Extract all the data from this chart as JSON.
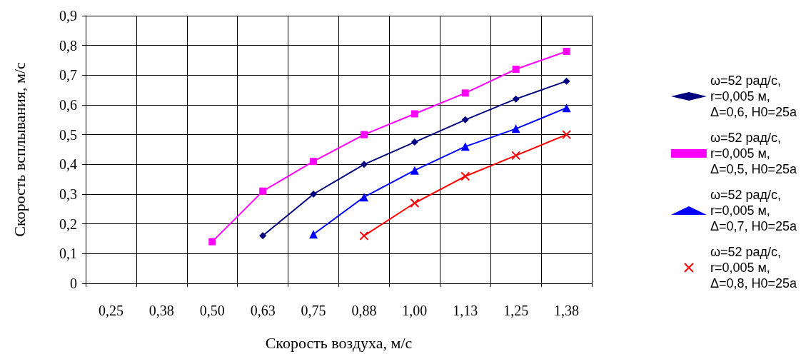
{
  "chart_data": {
    "type": "line",
    "xlabel": "Скорость воздуха, м/с",
    "ylabel": "Скорость всплывания, м/с",
    "categories": [
      "0,25",
      "0,38",
      "0,50",
      "0,63",
      "0,75",
      "0,88",
      "1,00",
      "1,13",
      "1,25",
      "1,38"
    ],
    "series": [
      {
        "name": "ω=52 рад/с, r=0,005 м, Δ=0,6, H0=25а",
        "color": "#000080",
        "marker": "diamond",
        "values": [
          null,
          null,
          null,
          0.16,
          0.3,
          0.4,
          0.475,
          0.55,
          0.62,
          0.68
        ]
      },
      {
        "name": "ω=52 рад/с, r=0,005 м, Δ=0,5, H0=25а",
        "color": "#ff00ff",
        "marker": "square",
        "values": [
          null,
          null,
          0.14,
          0.31,
          0.41,
          0.5,
          0.57,
          0.64,
          0.72,
          0.78
        ]
      },
      {
        "name": "ω=52 рад/с, r=0,005 м, Δ=0,7, H0=25а",
        "color": "#0000ff",
        "marker": "triangle",
        "values": [
          null,
          null,
          null,
          null,
          0.165,
          0.29,
          0.38,
          0.46,
          0.52,
          0.59
        ]
      },
      {
        "name": "ω=52 рад/с, r=0,005 м, Δ=0,8, H0=25а",
        "color": "#ff0000",
        "marker": "cross",
        "values": [
          null,
          null,
          null,
          null,
          null,
          0.16,
          0.27,
          0.36,
          0.43,
          0.5
        ]
      }
    ],
    "ylim": [
      0,
      0.9
    ],
    "yticks": [
      0,
      {
        "value": 0.1,
        "label": "0,1"
      },
      {
        "value": 0.2,
        "label": "0,2"
      },
      {
        "value": 0.3,
        "label": "0,3"
      },
      {
        "value": 0.4,
        "label": "0,4"
      },
      {
        "value": 0.5,
        "label": "0,5"
      },
      {
        "value": 0.6,
        "label": "0,6"
      },
      {
        "value": 0.7,
        "label": "0,7"
      },
      {
        "value": 0.8,
        "label": "0,8"
      },
      {
        "value": 0.9,
        "label": "0,9"
      }
    ],
    "grid": true,
    "legend": "right",
    "line_style": "solid"
  }
}
